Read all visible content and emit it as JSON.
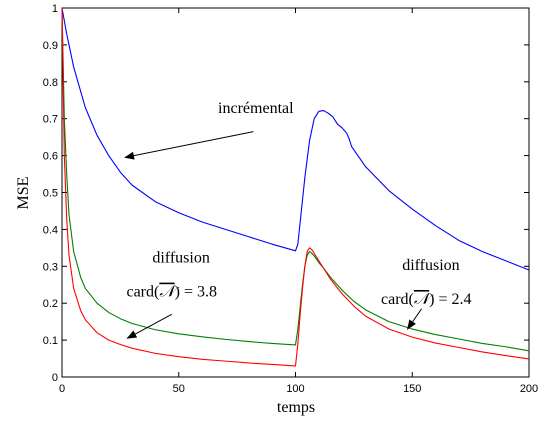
{
  "chart_data": {
    "type": "line",
    "xlabel": "temps",
    "ylabel": "MSE",
    "xlim": [
      0,
      200
    ],
    "ylim": [
      0,
      1
    ],
    "xticks": [
      0,
      50,
      100,
      150,
      200
    ],
    "yticks": [
      0,
      0.1,
      0.2,
      0.3,
      0.4,
      0.5,
      0.6,
      0.7,
      0.8,
      0.9,
      1
    ],
    "grid": false,
    "series": [
      {
        "color": "#0000ff",
        "x": [
          0,
          2,
          5,
          10,
          15,
          20,
          25,
          30,
          40,
          50,
          60,
          70,
          80,
          90,
          100,
          101,
          102,
          104,
          106,
          108,
          110,
          112,
          114,
          116,
          117,
          118,
          120,
          122,
          123,
          124,
          130,
          140,
          150,
          160,
          170,
          180,
          190,
          200
        ],
        "y": [
          1.0,
          0.93,
          0.84,
          0.73,
          0.655,
          0.6,
          0.555,
          0.52,
          0.475,
          0.445,
          0.42,
          0.4,
          0.38,
          0.36,
          0.342,
          0.36,
          0.42,
          0.54,
          0.64,
          0.7,
          0.72,
          0.722,
          0.715,
          0.705,
          0.695,
          0.685,
          0.675,
          0.66,
          0.645,
          0.625,
          0.57,
          0.505,
          0.455,
          0.41,
          0.37,
          0.34,
          0.315,
          0.29
        ]
      },
      {
        "color": "#008000",
        "x": [
          0,
          1,
          2,
          3,
          5,
          8,
          10,
          15,
          20,
          25,
          30,
          40,
          50,
          60,
          70,
          80,
          90,
          100,
          101,
          102,
          103,
          104,
          105,
          106,
          107,
          108,
          110,
          112,
          115,
          120,
          125,
          130,
          140,
          150,
          160,
          170,
          180,
          190,
          200
        ],
        "y": [
          1.0,
          0.7,
          0.55,
          0.44,
          0.34,
          0.27,
          0.24,
          0.2,
          0.175,
          0.158,
          0.145,
          0.128,
          0.117,
          0.109,
          0.102,
          0.096,
          0.091,
          0.087,
          0.13,
          0.19,
          0.25,
          0.3,
          0.33,
          0.34,
          0.335,
          0.328,
          0.31,
          0.295,
          0.27,
          0.235,
          0.205,
          0.182,
          0.15,
          0.13,
          0.115,
          0.103,
          0.091,
          0.082,
          0.071
        ]
      },
      {
        "color": "#ff0000",
        "x": [
          0,
          1,
          2,
          3,
          5,
          8,
          10,
          15,
          20,
          25,
          30,
          40,
          50,
          60,
          70,
          80,
          90,
          100,
          101,
          102,
          103,
          104,
          105,
          106,
          107,
          108,
          110,
          112,
          115,
          120,
          125,
          130,
          140,
          150,
          160,
          170,
          180,
          190,
          200
        ],
        "y": [
          1.0,
          0.6,
          0.43,
          0.33,
          0.24,
          0.18,
          0.155,
          0.12,
          0.1,
          0.088,
          0.078,
          0.064,
          0.055,
          0.048,
          0.043,
          0.038,
          0.034,
          0.03,
          0.09,
          0.17,
          0.24,
          0.3,
          0.34,
          0.35,
          0.345,
          0.335,
          0.315,
          0.295,
          0.265,
          0.225,
          0.192,
          0.165,
          0.13,
          0.108,
          0.092,
          0.08,
          0.068,
          0.058,
          0.049
        ]
      }
    ],
    "annotations": [
      {
        "id": "incremental",
        "lines": [
          "incrémental"
        ],
        "text_x": 83,
        "text_y": 0.715,
        "arrow_from": [
          82,
          0.665
        ],
        "arrow_to": [
          27,
          0.595
        ]
      },
      {
        "id": "diffusion-left",
        "lines": [
          "diffusion",
          "card(̅̅𝒩) = 3.8"
        ],
        "text_x": 51,
        "text_y": 0.31,
        "arrow_from": [
          47,
          0.17
        ],
        "arrow_to": [
          28,
          0.105
        ]
      },
      {
        "id": "diffusion-right",
        "lines": [
          "diffusion",
          "card(𝒩) = 2.4"
        ],
        "text_x": 158,
        "text_y": 0.29,
        "arrow_from": [
          154,
          0.185
        ],
        "arrow_to": [
          148,
          0.13
        ]
      }
    ]
  },
  "labels": {
    "annot_1": "incrémental",
    "annot_2a": "diffusion",
    "annot_2b_prefix": "card(",
    "annot_2b_N": "𝒩",
    "annot_2b_suffix": ") = 3.8",
    "annot_3a": "diffusion",
    "annot_3b_prefix": "card(",
    "annot_3b_N": "𝒩",
    "annot_3b_suffix": ") = 2.4"
  }
}
